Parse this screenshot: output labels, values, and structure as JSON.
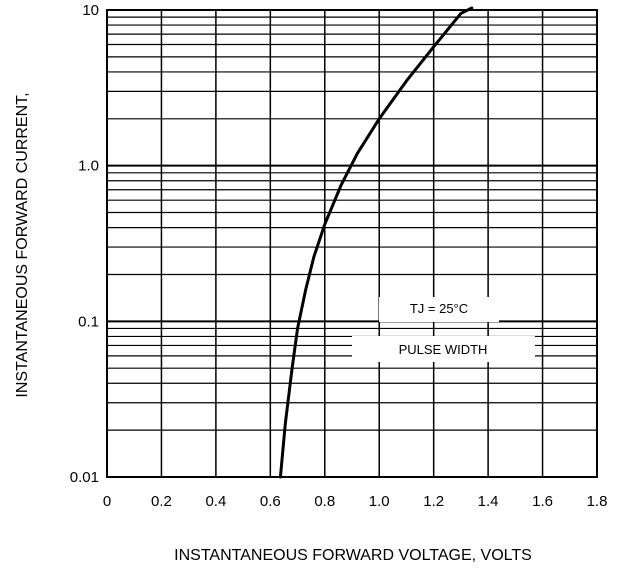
{
  "chart_data": {
    "type": "line",
    "xlabel": "INSTANTANEOUS FORWARD VOLTAGE, VOLTS",
    "ylabel": "INSTANTANEOUS FORWARD CURRENT,",
    "xlim": [
      0,
      1.8
    ],
    "ylim": [
      0.01,
      10
    ],
    "yscale": "log",
    "grid": true,
    "x_ticks": [
      "0",
      "0.2",
      "0.4",
      "0.6",
      "0.8",
      "1.0",
      "1.2",
      "1.4",
      "1.6",
      "1.8"
    ],
    "y_ticks": [
      {
        "label": "0.01",
        "value": 0.01
      },
      {
        "label": "0.1",
        "value": 0.1
      },
      {
        "label": "1.0",
        "value": 1.0
      },
      {
        "label": "10",
        "value": 10
      }
    ],
    "annotations": [
      "TJ = 25°C",
      "PULSE WIDTH"
    ],
    "series": [
      {
        "x": [
          0.637,
          0.655,
          0.68,
          0.7,
          0.73,
          0.76,
          0.8,
          0.86,
          0.92,
          1.0,
          1.1,
          1.2,
          1.3,
          1.34
        ],
        "y": [
          0.01,
          0.022,
          0.05,
          0.09,
          0.16,
          0.26,
          0.42,
          0.75,
          1.2,
          2.0,
          3.5,
          5.8,
          9.5,
          11.0
        ]
      }
    ]
  }
}
